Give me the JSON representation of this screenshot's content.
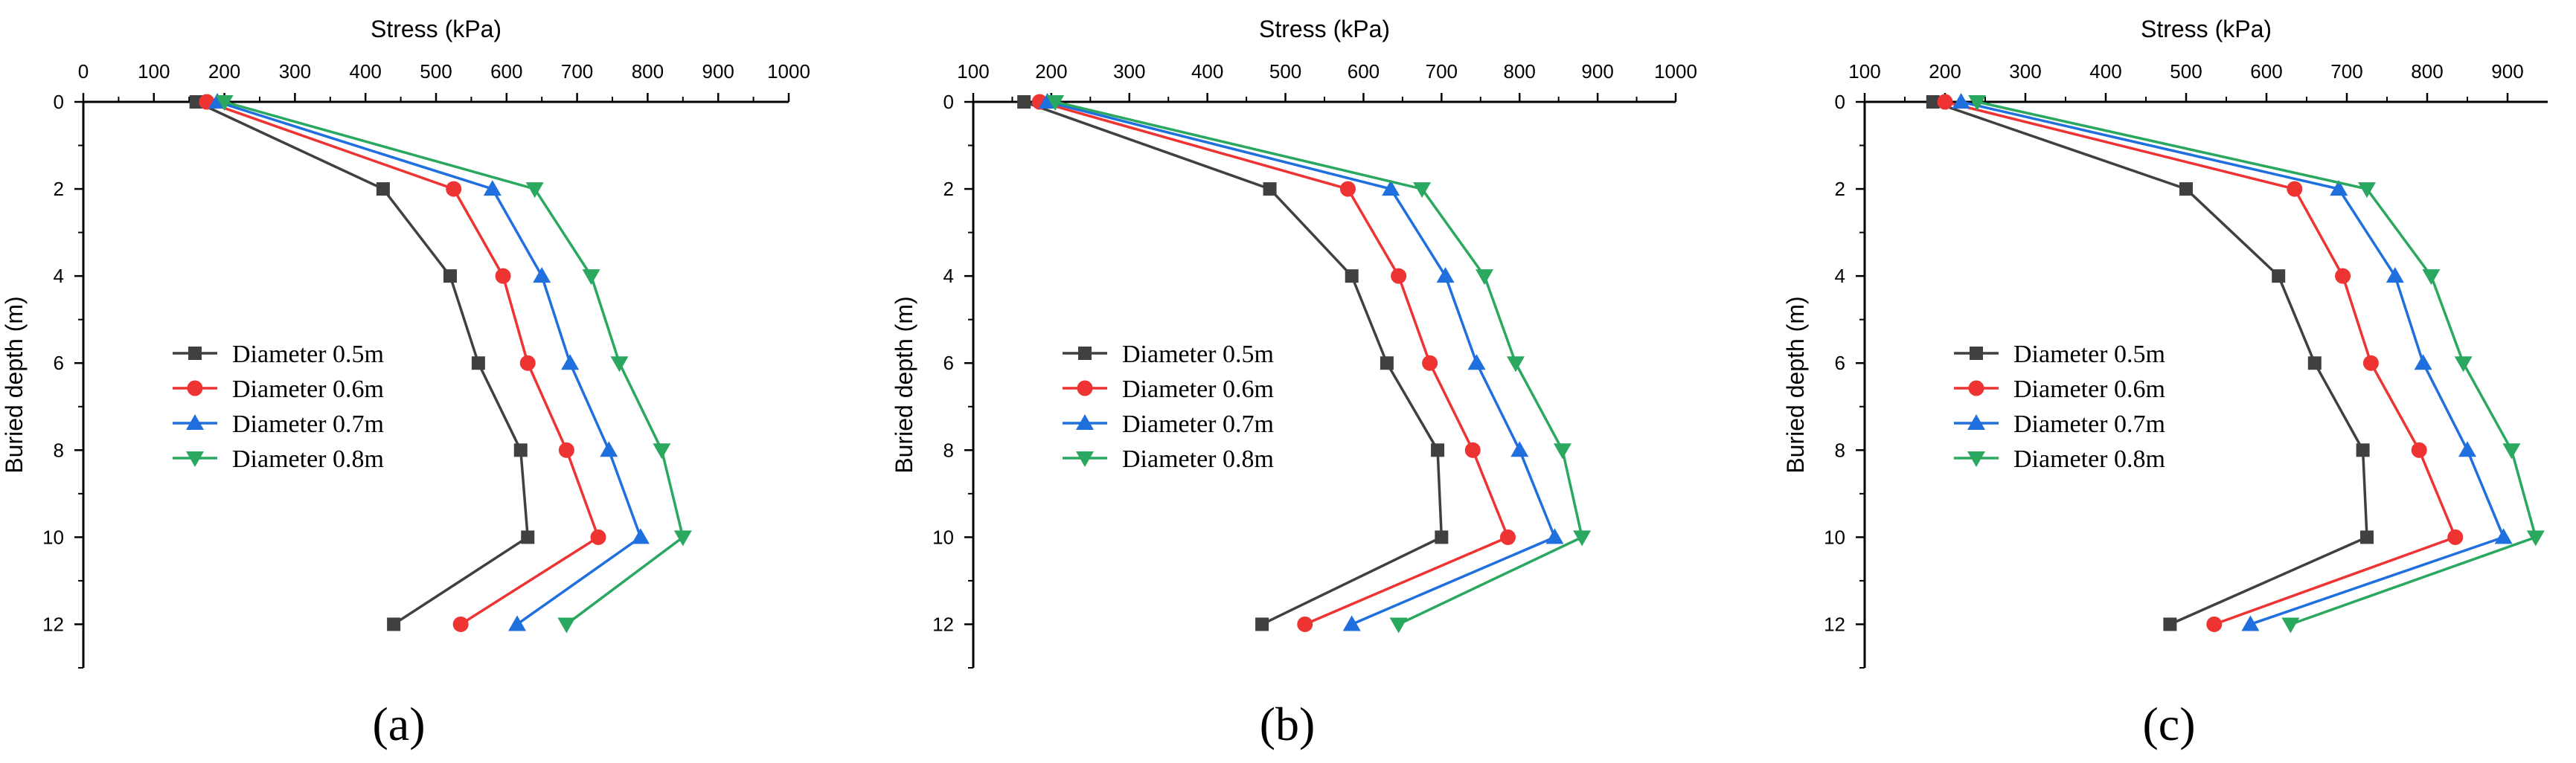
{
  "figure": {
    "x_title": "Stress (kPa)",
    "y_title": "Buried depth (m)"
  },
  "colors": {
    "d05": "#404040",
    "d06": "#ee3333",
    "d07": "#1f6fde",
    "d08": "#2aa860"
  },
  "chart_data": [
    {
      "type": "line",
      "panel_label": "(a)",
      "title": "Stress (kPa)",
      "xlabel": "Stress (kPa)",
      "ylabel": "Buried depth (m)",
      "xlim": [
        0,
        1000
      ],
      "ylim": [
        0,
        13
      ],
      "x_ticks": [
        0,
        100,
        200,
        300,
        400,
        500,
        600,
        700,
        800,
        900,
        1000
      ],
      "y_ticks": [
        0,
        2,
        4,
        6,
        8,
        10,
        12
      ],
      "depth": [
        0,
        2,
        4,
        6,
        8,
        10,
        12
      ],
      "legend_position": "left-middle",
      "series": [
        {
          "name": "Diameter 0.5m",
          "marker": "square",
          "values": [
            160,
            425,
            520,
            560,
            620,
            630,
            440
          ]
        },
        {
          "name": "Diameter 0.6m",
          "marker": "circle",
          "values": [
            175,
            525,
            595,
            630,
            685,
            730,
            535
          ]
        },
        {
          "name": "Diameter 0.7m",
          "marker": "triangle-up",
          "values": [
            190,
            580,
            650,
            690,
            745,
            790,
            615
          ]
        },
        {
          "name": "Diameter 0.8m",
          "marker": "triangle-down",
          "values": [
            200,
            640,
            720,
            760,
            820,
            850,
            685
          ]
        }
      ]
    },
    {
      "type": "line",
      "panel_label": "(b)",
      "title": "Stress (kPa)",
      "xlabel": "Stress (kPa)",
      "ylabel": "Buried depth (m)",
      "xlim": [
        100,
        1000
      ],
      "ylim": [
        0,
        13
      ],
      "x_ticks": [
        100,
        200,
        300,
        400,
        500,
        600,
        700,
        800,
        900,
        1000
      ],
      "y_ticks": [
        0,
        2,
        4,
        6,
        8,
        10,
        12
      ],
      "depth": [
        0,
        2,
        4,
        6,
        8,
        10,
        12
      ],
      "legend_position": "left-middle",
      "series": [
        {
          "name": "Diameter 0.5m",
          "marker": "square",
          "values": [
            165,
            480,
            585,
            630,
            695,
            700,
            470
          ]
        },
        {
          "name": "Diameter 0.6m",
          "marker": "circle",
          "values": [
            185,
            580,
            645,
            685,
            740,
            785,
            525
          ]
        },
        {
          "name": "Diameter 0.7m",
          "marker": "triangle-up",
          "values": [
            195,
            635,
            705,
            745,
            800,
            845,
            585
          ]
        },
        {
          "name": "Diameter 0.8m",
          "marker": "triangle-down",
          "values": [
            205,
            675,
            755,
            795,
            855,
            880,
            645
          ]
        }
      ]
    },
    {
      "type": "line",
      "panel_label": "(c)",
      "title": "Stress (kPa)",
      "xlabel": "Stress (kPa)",
      "ylabel": "Buried depth (m)",
      "xlim": [
        100,
        950
      ],
      "ylim": [
        0,
        13
      ],
      "x_ticks": [
        100,
        200,
        300,
        400,
        500,
        600,
        700,
        800,
        900
      ],
      "y_ticks": [
        0,
        2,
        4,
        6,
        8,
        10,
        12
      ],
      "depth": [
        0,
        2,
        4,
        6,
        8,
        10,
        12
      ],
      "legend_position": "left-middle",
      "series": [
        {
          "name": "Diameter 0.5m",
          "marker": "square",
          "values": [
            185,
            500,
            615,
            660,
            720,
            725,
            480
          ]
        },
        {
          "name": "Diameter 0.6m",
          "marker": "circle",
          "values": [
            200,
            635,
            695,
            730,
            790,
            835,
            535
          ]
        },
        {
          "name": "Diameter 0.7m",
          "marker": "triangle-up",
          "values": [
            220,
            690,
            760,
            795,
            850,
            895,
            580
          ]
        },
        {
          "name": "Diameter 0.8m",
          "marker": "triangle-down",
          "values": [
            240,
            725,
            805,
            845,
            905,
            935,
            630
          ]
        }
      ]
    }
  ]
}
